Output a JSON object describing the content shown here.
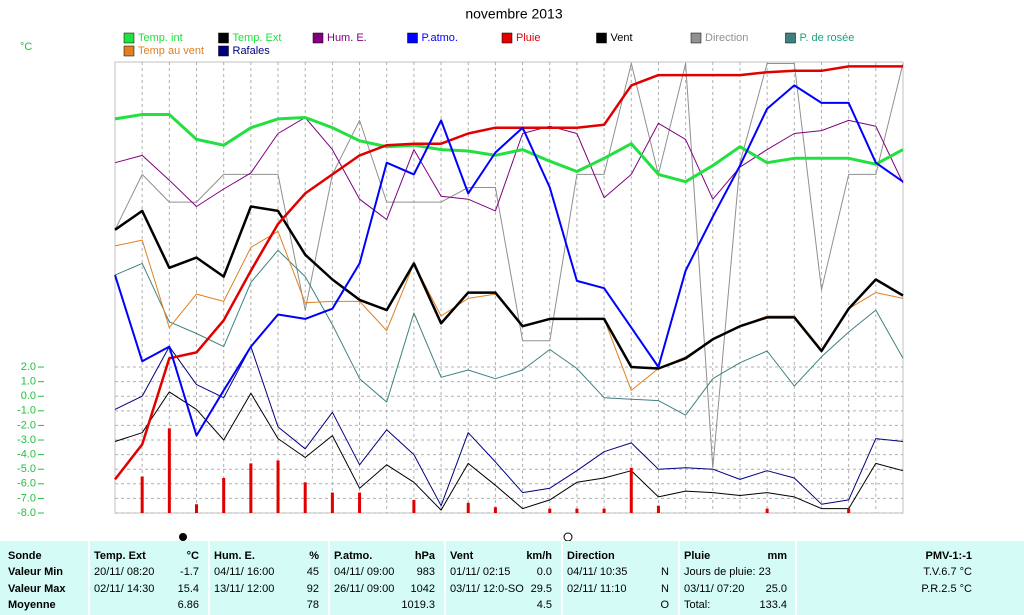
{
  "chart_data": {
    "type": "line",
    "title": "novembre 2013",
    "y_label": "°C",
    "ylim": [
      -8,
      22.9
    ],
    "yticks": [
      {
        "value": 2,
        "label": "2.0"
      },
      {
        "value": 1,
        "label": "1.0"
      },
      {
        "value": 0,
        "label": "0.0"
      },
      {
        "value": -1,
        "label": "-1.0"
      },
      {
        "value": -2,
        "label": "-2.0"
      },
      {
        "value": -3,
        "label": "-3.0"
      },
      {
        "value": -4,
        "label": "-4.0"
      },
      {
        "value": -5,
        "label": "-5.0"
      },
      {
        "value": -6,
        "label": "-6.0"
      },
      {
        "value": -7,
        "label": "-7.0"
      },
      {
        "value": -8,
        "label": "-8.0"
      }
    ],
    "grid": true,
    "series": [
      {
        "name": "Temp. int",
        "color": "#22e040",
        "legend_text_color": "#22e040",
        "width": 3,
        "values": [
          19.0,
          19.3,
          19.3,
          17.6,
          17.2,
          18.4,
          19.0,
          19.1,
          18.4,
          17.5,
          17.1,
          17.2,
          16.9,
          16.8,
          16.5,
          16.9,
          16.1,
          15.4,
          16.3,
          17.3,
          15.2,
          14.7,
          15.8,
          17.1,
          16.0,
          16.3,
          16.3,
          16.3,
          15.9,
          16.9
        ]
      },
      {
        "name": "Temp. Ext",
        "color": "#000000",
        "legend_text_color": "#22e040",
        "width": 2.5,
        "values": [
          11.4,
          12.7,
          8.8,
          9.5,
          8.2,
          13.0,
          12.7,
          9.7,
          8.0,
          6.6,
          5.9,
          9.1,
          5.0,
          7.1,
          7.1,
          4.8,
          5.3,
          5.3,
          5.3,
          2.0,
          1.9,
          2.6,
          3.9,
          4.8,
          5.4,
          5.4,
          3.1,
          6.0,
          8.0,
          6.9
        ]
      },
      {
        "name": "Hum. E.",
        "color": "#800080",
        "legend_text_color": "#800080",
        "width": 1,
        "values": [
          16.0,
          16.5,
          14.8,
          13.0,
          14.2,
          15.3,
          18.0,
          19.1,
          16.9,
          13.5,
          12.1,
          16.9,
          13.7,
          13.5,
          12.7,
          18.0,
          18.5,
          18.0,
          13.6,
          15.2,
          18.7,
          17.6,
          13.5,
          15.7,
          16.9,
          18.0,
          18.2,
          18.9,
          18.5,
          14.6
        ]
      },
      {
        "name": "P.atmo.",
        "color": "#0000ff",
        "legend_text_color": "#0000ff",
        "width": 2,
        "values": [
          8.3,
          2.4,
          3.4,
          -2.7,
          0.4,
          3.4,
          5.6,
          5.3,
          6.0,
          9.1,
          16.0,
          15.2,
          18.9,
          13.9,
          16.7,
          18.4,
          14.3,
          7.9,
          7.4,
          4.7,
          2.0,
          8.6,
          12.3,
          15.8,
          19.7,
          21.3,
          20.1,
          20.1,
          16.0,
          14.7
        ]
      },
      {
        "name": "Pluie",
        "color": "#e00000",
        "legend_text_color": "#e00000",
        "width": 2.5,
        "values": [
          -5.7,
          -3.3,
          2.6,
          3.0,
          5.2,
          8.6,
          11.8,
          13.9,
          15.2,
          16.5,
          17.2,
          17.3,
          17.3,
          18.0,
          18.4,
          18.4,
          18.4,
          18.4,
          18.6,
          21.3,
          22.0,
          22.0,
          22.0,
          22.0,
          22.2,
          22.3,
          22.3,
          22.6,
          22.6,
          22.6
        ],
        "bars": [
          null,
          -5.5,
          -2.2,
          -7.4,
          -5.6,
          -4.6,
          -4.4,
          -5.9,
          -6.6,
          -6.6,
          null,
          -7.1,
          null,
          -7.3,
          -7.6,
          null,
          -7.7,
          -7.7,
          -7.7,
          -4.9,
          -7.5,
          null,
          null,
          null,
          -7.7,
          null,
          null,
          -7.7,
          null,
          null
        ]
      },
      {
        "name": "Vent",
        "color": "#000000",
        "legend_text_color": "#000000",
        "width": 1,
        "values": [
          -3.1,
          -2.5,
          0.3,
          -0.9,
          -3.0,
          0.2,
          -2.9,
          -4.2,
          -2.7,
          -6.3,
          -4.7,
          -5.9,
          -7.8,
          -4.6,
          -6.1,
          -7.7,
          -7.1,
          -5.9,
          -5.6,
          -5.1,
          -6.9,
          -6.5,
          -6.6,
          -6.8,
          -6.6,
          -6.9,
          -7.7,
          -7.7,
          -4.6,
          -5.1
        ]
      },
      {
        "name": "Direction",
        "color": "#909090",
        "legend_text_color": "#909090",
        "width": 1,
        "values": [
          11.4,
          15.2,
          13.3,
          13.3,
          15.2,
          15.2,
          15.2,
          5.9,
          15.2,
          18.9,
          13.3,
          13.3,
          13.3,
          14.3,
          14.3,
          3.8,
          3.8,
          15.2,
          15.2,
          22.8,
          15.2,
          22.8,
          -4.9,
          16.0,
          22.8,
          22.8,
          7.3,
          15.2,
          15.2,
          22.8
        ]
      },
      {
        "name": "P. de rosée",
        "color": "#408080",
        "legend_text_color": "#20a080",
        "width": 1,
        "values": [
          8.3,
          9.1,
          5.1,
          4.3,
          3.4,
          7.8,
          10.0,
          8.2,
          4.9,
          1.2,
          -0.4,
          5.7,
          1.3,
          1.8,
          1.2,
          1.8,
          3.2,
          1.9,
          -0.1,
          -0.2,
          -0.3,
          -1.3,
          1.2,
          2.3,
          3.1,
          0.7,
          2.7,
          4.4,
          5.9,
          2.6
        ]
      },
      {
        "name": "Temp au vent",
        "color": "#e08020",
        "legend_text_color": "#e08020",
        "width": 1,
        "values": [
          10.3,
          10.7,
          4.7,
          7.0,
          6.5,
          10.2,
          11.3,
          6.4,
          6.5,
          6.5,
          4.5,
          9.1,
          5.5,
          6.7,
          7.0,
          4.8,
          5.3,
          5.3,
          5.3,
          0.4,
          1.9,
          2.7,
          3.9,
          4.8,
          5.5,
          5.5,
          3.2,
          6.0,
          7.1,
          6.7
        ]
      },
      {
        "name": "Rafales",
        "color": "#000080",
        "legend_text_color": "#000080",
        "width": 1,
        "values": [
          -0.9,
          0.0,
          3.4,
          0.8,
          -0.1,
          3.4,
          -2.1,
          -3.6,
          -1.1,
          -4.7,
          -2.3,
          -4.0,
          -7.5,
          -2.5,
          -4.5,
          -6.6,
          -6.3,
          -5.1,
          -3.8,
          -3.2,
          -5.0,
          -4.9,
          -5.0,
          -5.7,
          -5.1,
          -5.6,
          -7.4,
          -7.1,
          -2.9,
          -3.1
        ]
      }
    ]
  },
  "table": {
    "row_labels": [
      "Sonde",
      "Valeur Min",
      "Valeur Max",
      "Moyenne"
    ],
    "columns": [
      {
        "name": "Temp. Ext",
        "unit": "°C",
        "cells": [
          {
            "label": "20/11/ 08:20",
            "value": "-1.7"
          },
          {
            "label": "02/11/ 14:30",
            "value": "15.4"
          },
          {
            "value": "6.86"
          }
        ]
      },
      {
        "name": "Hum. E.",
        "unit": "%",
        "cells": [
          {
            "label": "04/11/ 16:00",
            "value": "45"
          },
          {
            "label": "13/11/ 12:00",
            "value": "92"
          },
          {
            "value": "78"
          }
        ]
      },
      {
        "name": "P.atmo.",
        "unit": "hPa",
        "cells": [
          {
            "label": "04/11/ 09:00",
            "value": "983"
          },
          {
            "label": "26/11/ 09:00",
            "value": "1042"
          },
          {
            "value": "1019.3"
          }
        ]
      },
      {
        "name": "Vent",
        "unit": "km/h",
        "cells": [
          {
            "label": "01/11/ 02:15",
            "value": "0.0"
          },
          {
            "label": "03/11/ 12:0-SO",
            "value": "29.5"
          },
          {
            "value": "4.5"
          }
        ]
      },
      {
        "name": "Direction",
        "cells": [
          {
            "label": "04/11/ 10:35",
            "value": "N"
          },
          {
            "label": "02/11/ 11:10",
            "value": "N"
          },
          {
            "value": "O"
          }
        ]
      },
      {
        "name": "Pluie",
        "unit": "mm",
        "cells": [
          {
            "label": "Jours de pluie: 23"
          },
          {
            "label": "03/11/ 07:20",
            "value": "25.0"
          },
          {
            "label": "Total:",
            "value": "133.4"
          }
        ]
      },
      {
        "name": "PMV-1:-1",
        "cells": [
          {
            "value": "T.V.6.7 °C"
          },
          {
            "value": "P.R.2.5 °C"
          }
        ]
      }
    ]
  }
}
